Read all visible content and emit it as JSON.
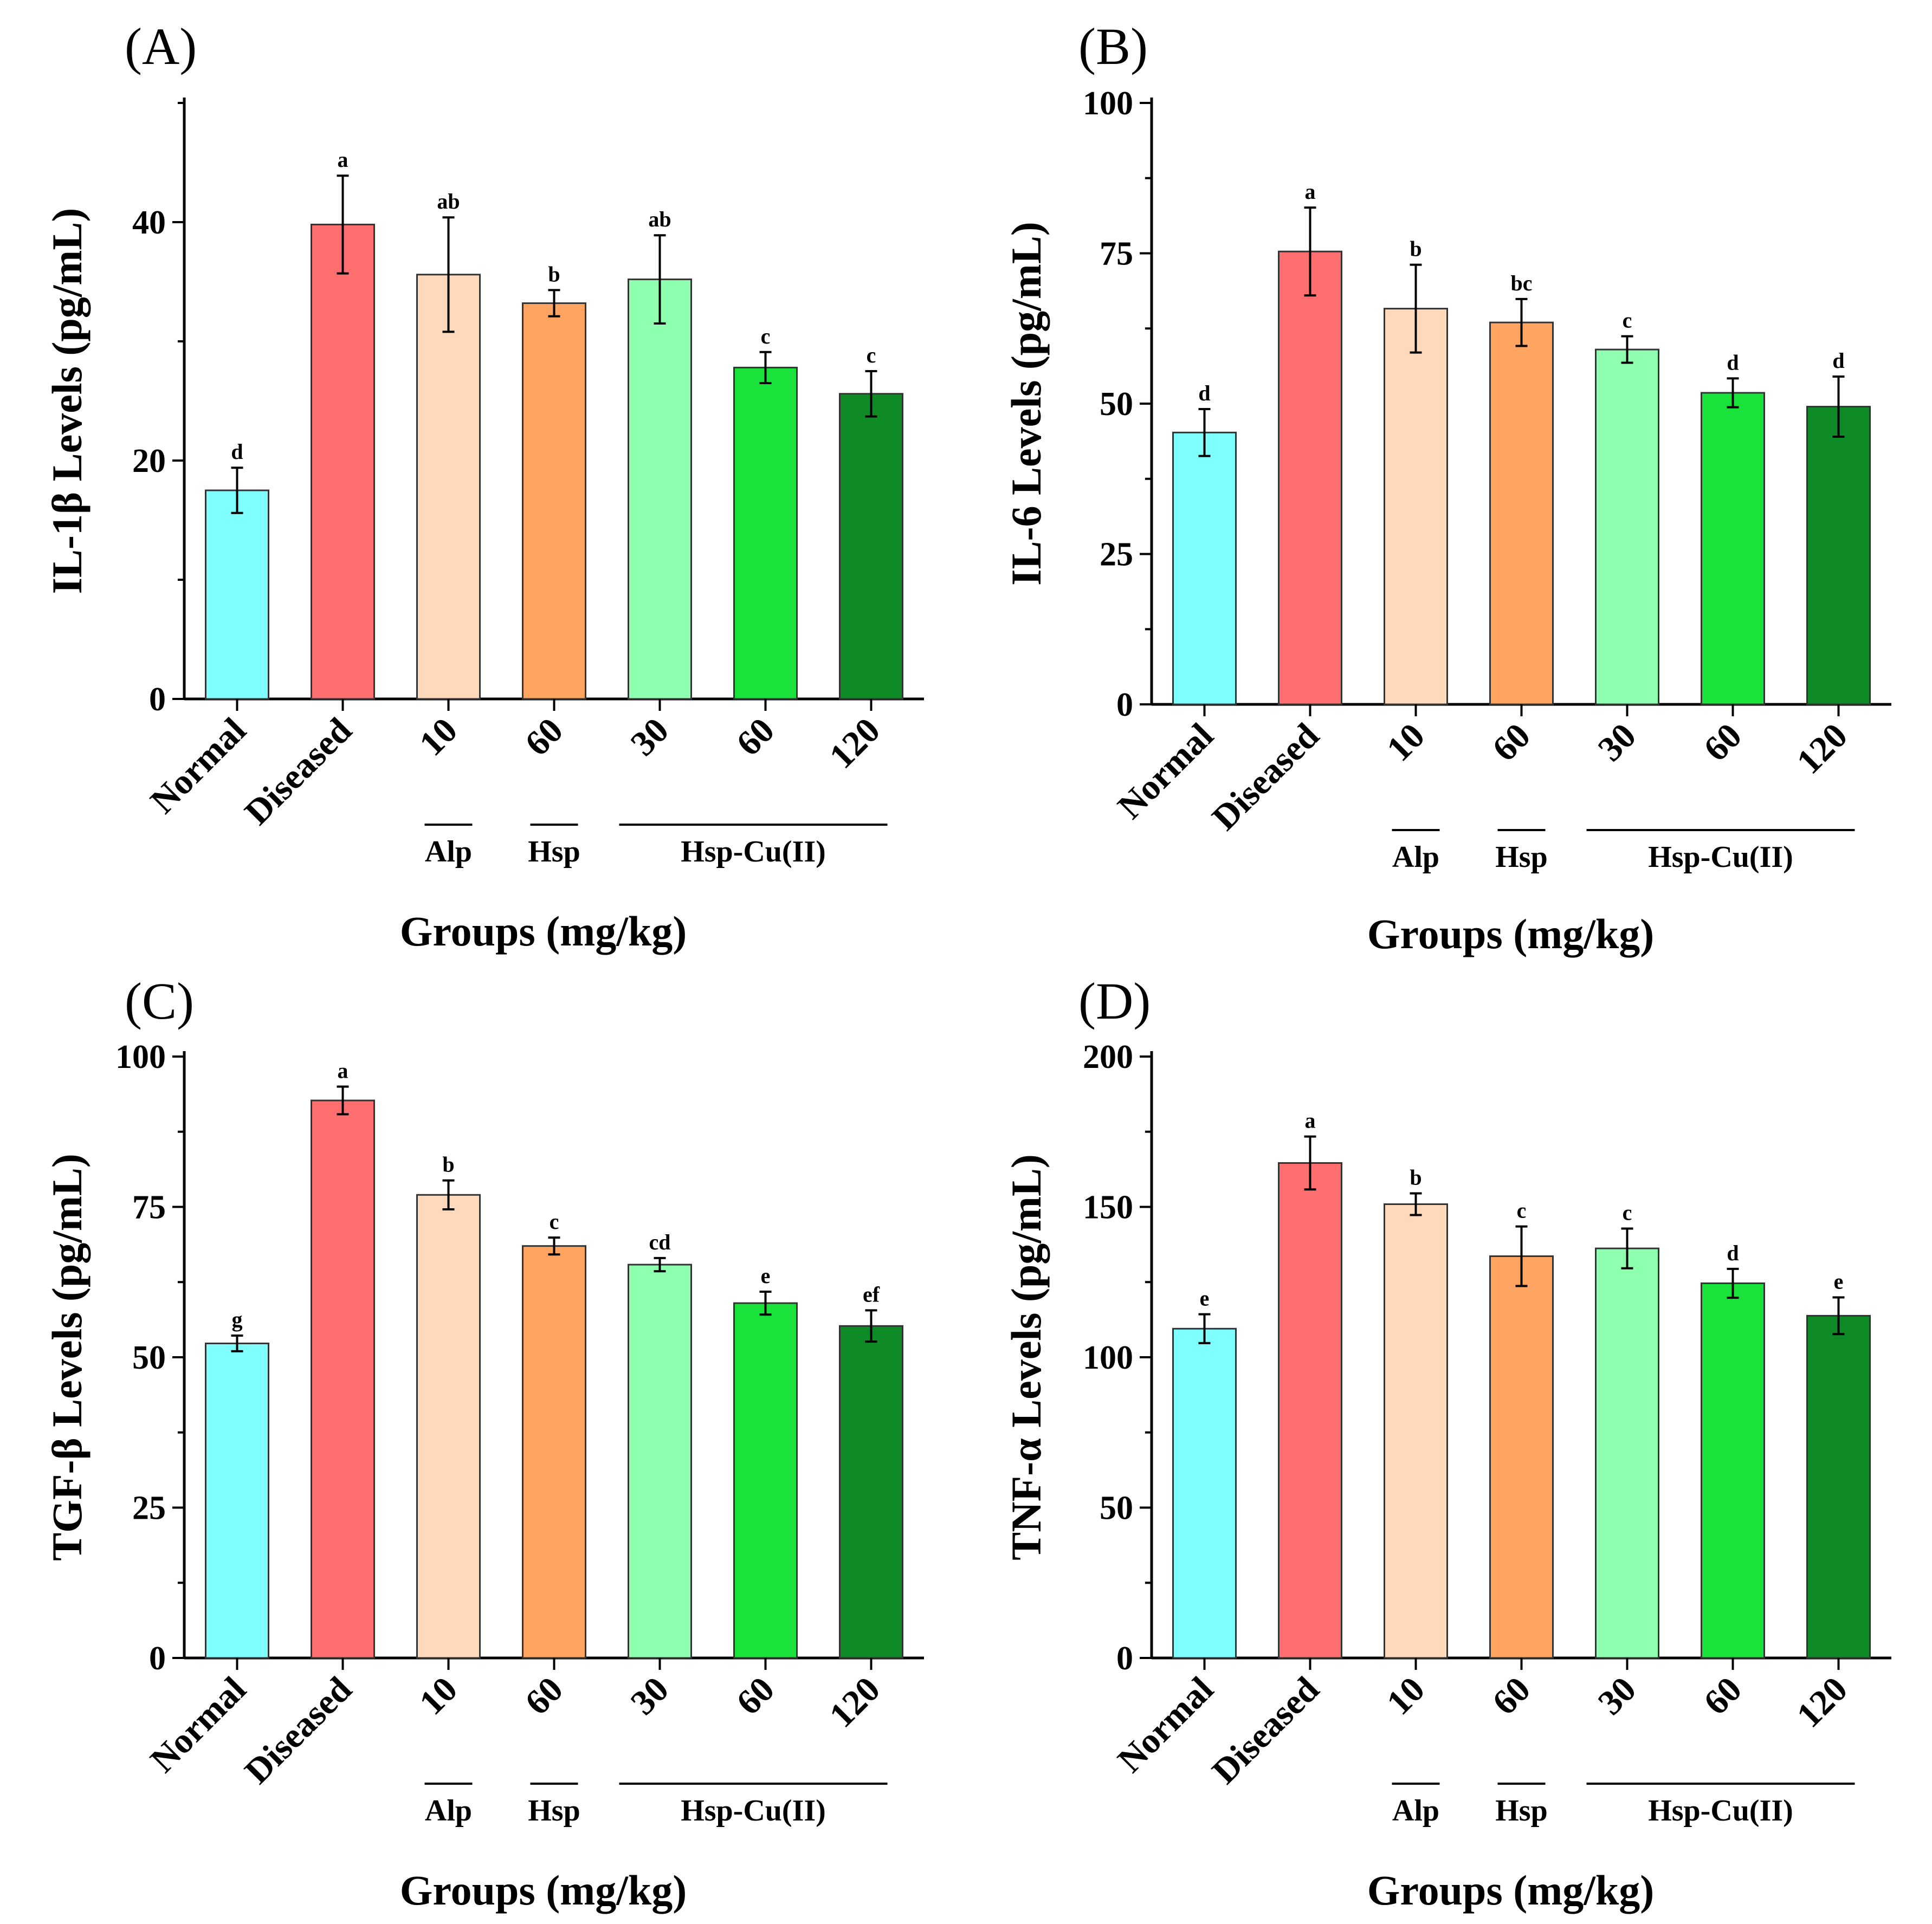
{
  "figure": {
    "categories": [
      "Normal",
      "Diseased",
      "10",
      "60",
      "30",
      "60",
      "120"
    ],
    "colors": [
      "#80ffff",
      "#ff6f6f",
      "#ffd9bb",
      "#ffa461",
      "#8fffb0",
      "#19e23a",
      "#0e8b27"
    ],
    "groups": [
      {
        "label": "Alp",
        "from": 2,
        "to": 2
      },
      {
        "label": "Hsp",
        "from": 3,
        "to": 3
      },
      {
        "label": "Hsp-Cu(II)",
        "from": 4,
        "to": 6
      }
    ],
    "xlabel": "Groups (mg/kg)"
  },
  "chart_data": [
    {
      "type": "bar",
      "panel": "(A)",
      "ylabel": "IL-1β Levels  (pg/mL)",
      "ylim": [
        0,
        50
      ],
      "yticks": [
        0,
        20,
        40
      ],
      "values": [
        17.5,
        39.8,
        35.6,
        33.2,
        35.2,
        27.8,
        25.6
      ],
      "errors": [
        1.9,
        4.1,
        4.8,
        1.1,
        3.7,
        1.3,
        1.9
      ],
      "letters": [
        "d",
        "a",
        "ab",
        "b",
        "ab",
        "c",
        "c"
      ]
    },
    {
      "type": "bar",
      "panel": "(B)",
      "ylabel": "IL-6 Levels  (pg/mL)",
      "ylim": [
        0,
        100
      ],
      "yticks": [
        0,
        25,
        50,
        75,
        100
      ],
      "values": [
        45.2,
        75.3,
        65.8,
        63.5,
        59.0,
        51.8,
        49.5
      ],
      "errors": [
        3.9,
        7.3,
        7.3,
        3.9,
        2.2,
        2.4,
        5.0
      ],
      "letters": [
        "d",
        "a",
        "b",
        "bc",
        "c",
        "d",
        "d"
      ]
    },
    {
      "type": "bar",
      "panel": "(C)",
      "ylabel": "TGF-β Levels (pg/mL)",
      "ylim": [
        0,
        100
      ],
      "yticks": [
        0,
        25,
        50,
        75,
        100
      ],
      "values": [
        52.3,
        92.7,
        77.0,
        68.5,
        65.4,
        59.0,
        55.2
      ],
      "errors": [
        1.3,
        2.3,
        2.4,
        1.4,
        1.1,
        1.9,
        2.6
      ],
      "letters": [
        "g",
        "a",
        "b",
        "c",
        "cd",
        "e",
        "ef"
      ]
    },
    {
      "type": "bar",
      "panel": "(D)",
      "ylabel": "TNF-α Levels (pg/mL)",
      "ylim": [
        0,
        200
      ],
      "yticks": [
        0,
        50,
        100,
        150,
        200
      ],
      "values": [
        109.5,
        164.6,
        150.9,
        133.6,
        136.2,
        124.6,
        113.8
      ],
      "errors": [
        4.8,
        8.8,
        3.6,
        9.9,
        6.6,
        4.8,
        6.1
      ],
      "letters": [
        "e",
        "a",
        "b",
        "c",
        "c",
        "d",
        "e"
      ]
    }
  ]
}
